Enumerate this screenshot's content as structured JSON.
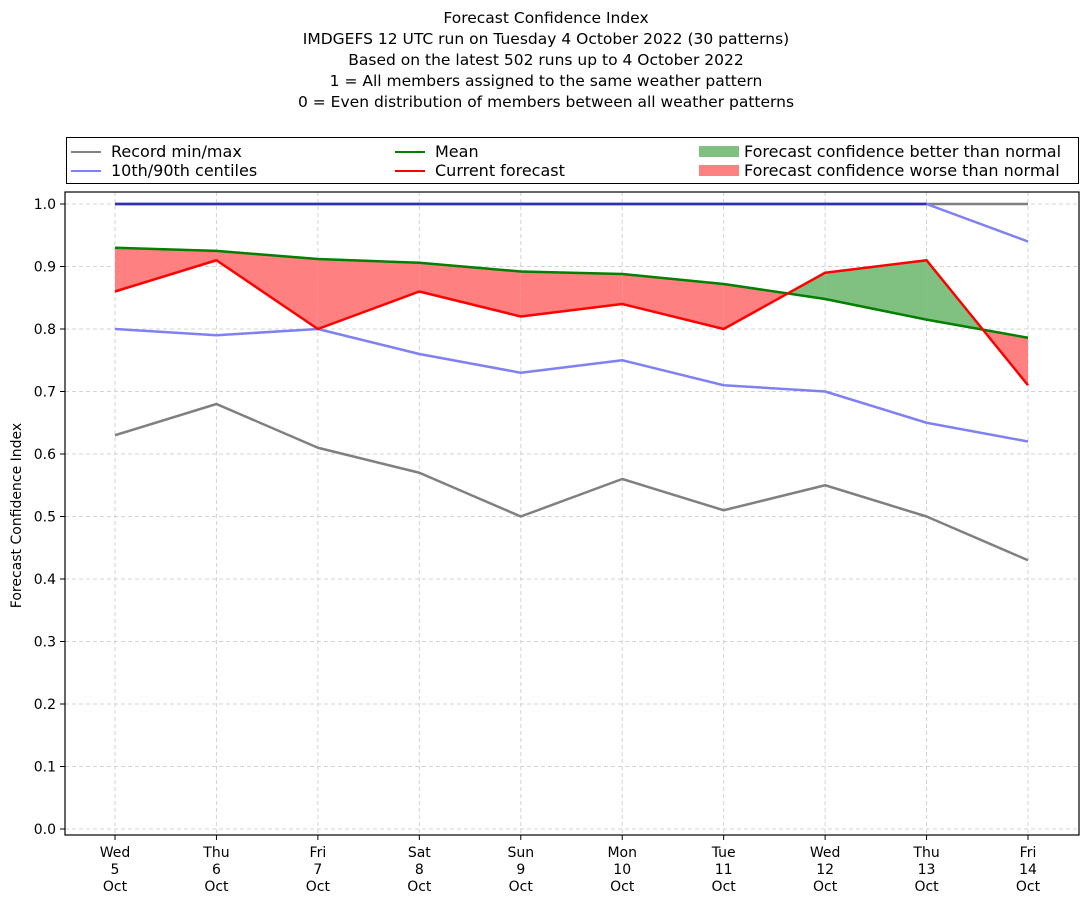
{
  "title_lines": [
    "Forecast Confidence Index",
    "IMDGEFS 12 UTC run on Tuesday 4 October 2022 (30 patterns)",
    "Based on the latest 502 runs up to 4 October 2022",
    "1 = All members assigned to the same weather pattern",
    "0 = Even distribution of members between all weather patterns"
  ],
  "legend": {
    "record": "Record min/max",
    "centiles": "10th/90th centiles",
    "mean": "Mean",
    "current": "Current forecast",
    "better": "Forecast confidence better than normal",
    "worse": "Forecast confidence worse than normal"
  },
  "colors": {
    "record": "#808080",
    "centiles": "#8080f5",
    "mean": "#008000",
    "current": "#ff0000",
    "better": "#80c080",
    "worse": "#ff8080",
    "overlap": "#3030b0"
  },
  "chart_data": {
    "type": "line",
    "title": "Forecast Confidence Index",
    "ylabel": "Forecast Confidence Index",
    "xlabel": "",
    "ylim": [
      0.0,
      1.0
    ],
    "yticks": [
      "0.0",
      "0.1",
      "0.2",
      "0.3",
      "0.4",
      "0.5",
      "0.6",
      "0.7",
      "0.8",
      "0.9",
      "1.0"
    ],
    "grid": true,
    "legend_position": "top",
    "categories": [
      [
        "Wed",
        "5",
        "Oct"
      ],
      [
        "Thu",
        "6",
        "Oct"
      ],
      [
        "Fri",
        "7",
        "Oct"
      ],
      [
        "Sat",
        "8",
        "Oct"
      ],
      [
        "Sun",
        "9",
        "Oct"
      ],
      [
        "Mon",
        "10",
        "Oct"
      ],
      [
        "Tue",
        "11",
        "Oct"
      ],
      [
        "Wed",
        "12",
        "Oct"
      ],
      [
        "Thu",
        "13",
        "Oct"
      ],
      [
        "Fri",
        "14",
        "Oct"
      ]
    ],
    "series": [
      {
        "name": "Record min/max",
        "key": "record_max",
        "values": [
          1.0,
          1.0,
          1.0,
          1.0,
          1.0,
          1.0,
          1.0,
          1.0,
          1.0,
          1.0
        ]
      },
      {
        "name": "Record min/max",
        "key": "record_min",
        "values": [
          0.63,
          0.68,
          0.61,
          0.57,
          0.5,
          0.56,
          0.51,
          0.55,
          0.5,
          0.43
        ]
      },
      {
        "name": "10th/90th centiles",
        "key": "p90",
        "values": [
          1.0,
          1.0,
          1.0,
          1.0,
          1.0,
          1.0,
          1.0,
          1.0,
          1.0,
          0.94
        ]
      },
      {
        "name": "10th/90th centiles",
        "key": "p10",
        "values": [
          0.8,
          0.79,
          0.8,
          0.76,
          0.73,
          0.75,
          0.71,
          0.7,
          0.65,
          0.62
        ]
      },
      {
        "name": "Mean",
        "key": "mean",
        "values": [
          0.93,
          0.925,
          0.912,
          0.906,
          0.892,
          0.888,
          0.872,
          0.848,
          0.815,
          0.786
        ]
      },
      {
        "name": "Current forecast",
        "key": "current",
        "values": [
          0.86,
          0.91,
          0.8,
          0.86,
          0.82,
          0.84,
          0.8,
          0.89,
          0.91,
          0.71
        ]
      }
    ]
  }
}
